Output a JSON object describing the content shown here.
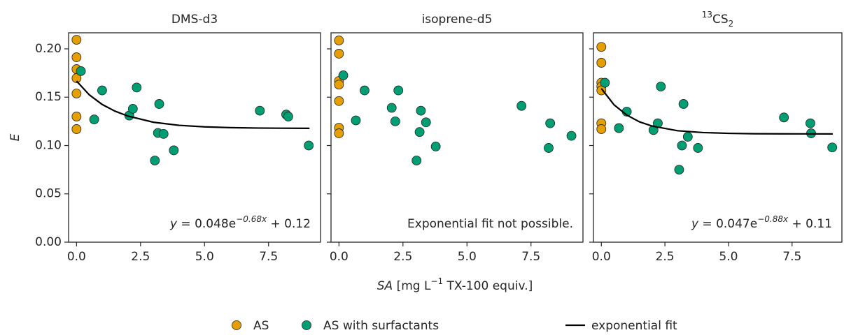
{
  "chart_data": [
    {
      "type": "scatter",
      "title": [
        "DMS-d3"
      ],
      "ylabel": "E",
      "xlim": [
        -0.31,
        9.53
      ],
      "ylim": [
        0,
        0.2166
      ],
      "xticks": [
        {
          "value": 0,
          "label": "0.0"
        },
        2.5,
        {
          "value": 5,
          "label": "5.0"
        },
        7.5
      ],
      "yticks": [
        {
          "value": 0,
          "label": "0.00"
        },
        {
          "value": 0.05,
          "label": "0.05"
        },
        {
          "value": 0.1,
          "label": "0.10"
        },
        {
          "value": 0.15,
          "label": "0.15"
        },
        {
          "value": 0.2,
          "label": "0.20"
        }
      ],
      "yticklabels": true,
      "annotation": [
        "y",
        " = 0.048e",
        "−0.68x",
        " + 0.12"
      ],
      "series": [
        {
          "name": "AS",
          "color": "#e69f00",
          "x": [
            0,
            0,
            0,
            0,
            0,
            0,
            0
          ],
          "values": [
            0.2094,
            0.1913,
            0.179,
            0.1697,
            0.1538,
            0.13,
            0.117
          ]
        },
        {
          "name": "AS with surfactants",
          "color": "#009e73",
          "x": [
            0.17,
            1.0,
            0.69,
            2.06,
            2.2,
            2.35,
            3.23,
            3.06,
            3.18,
            3.4,
            3.8,
            7.16,
            8.19,
            8.27,
            9.07
          ],
          "values": [
            0.177,
            0.157,
            0.127,
            0.131,
            0.138,
            0.16,
            0.143,
            0.0845,
            0.113,
            0.112,
            0.095,
            0.136,
            0.132,
            0.13,
            0.1
          ]
        },
        {
          "name": "exponential fit",
          "color": "#000000",
          "style": "line",
          "x": [
            0,
            0.5,
            1,
            1.5,
            2,
            3,
            4,
            5,
            6,
            7,
            8,
            9.1
          ],
          "values": [
            0.1667,
            0.1524,
            0.1425,
            0.1356,
            0.1305,
            0.1241,
            0.1209,
            0.1193,
            0.1185,
            0.1181,
            0.1179,
            0.1178
          ]
        }
      ]
    },
    {
      "type": "scatter",
      "title": [
        "isoprene-d5"
      ],
      "xlim": [
        -0.31,
        9.53
      ],
      "ylim": [
        0,
        0.2166
      ],
      "xticks": [
        {
          "value": 0,
          "label": "0.0"
        },
        2.5,
        {
          "value": 5,
          "label": "5.0"
        },
        7.5
      ],
      "yticks": [
        0,
        0.05,
        0.1,
        0.15,
        0.2
      ],
      "yticklabels": false,
      "annotation": [
        "Exponential fit not possible."
      ],
      "series": [
        {
          "name": "AS",
          "color": "#e69f00",
          "x": [
            0,
            0,
            0,
            0,
            0,
            0,
            0
          ],
          "values": [
            0.2087,
            0.195,
            0.1668,
            0.163,
            0.146,
            0.1184,
            0.1126
          ]
        },
        {
          "name": "AS with surfactants",
          "color": "#009e73",
          "x": [
            0.17,
            1.0,
            0.66,
            2.06,
            2.2,
            2.32,
            3.2,
            3.03,
            3.15,
            3.4,
            3.78,
            7.13,
            8.25,
            8.19,
            9.08
          ],
          "values": [
            0.1726,
            0.157,
            0.126,
            0.139,
            0.125,
            0.157,
            0.136,
            0.0845,
            0.114,
            0.124,
            0.099,
            0.141,
            0.123,
            0.0975,
            0.11
          ]
        }
      ]
    },
    {
      "type": "scatter",
      "title": [
        "13",
        "CS",
        "2"
      ],
      "xlim": [
        -0.31,
        9.46
      ],
      "ylim": [
        0,
        0.2166
      ],
      "xticks": [
        {
          "value": 0,
          "label": "0.0"
        },
        2.5,
        {
          "value": 5,
          "label": "5.0"
        },
        7.5
      ],
      "yticks": [
        0,
        0.05,
        0.1,
        0.15,
        0.2
      ],
      "yticklabels": false,
      "annotation": [
        "y",
        " = 0.047e",
        "−0.88x",
        " + 0.11"
      ],
      "series": [
        {
          "name": "AS",
          "color": "#e69f00",
          "x": [
            0,
            0,
            0,
            0,
            0,
            0,
            0
          ],
          "values": [
            0.202,
            0.1856,
            0.165,
            0.161,
            0.157,
            0.123,
            0.117
          ]
        },
        {
          "name": "AS with surfactants",
          "color": "#009e73",
          "x": [
            0.14,
            1.0,
            0.69,
            2.05,
            2.22,
            2.34,
            3.23,
            3.06,
            3.17,
            3.4,
            3.8,
            7.18,
            8.22,
            8.25,
            9.08
          ],
          "values": [
            0.165,
            0.135,
            0.118,
            0.116,
            0.123,
            0.161,
            0.143,
            0.075,
            0.1,
            0.109,
            0.0975,
            0.129,
            0.123,
            0.1126,
            0.098
          ]
        },
        {
          "name": "exponential fit",
          "color": "#000000",
          "style": "line",
          "x": [
            0,
            0.5,
            1,
            1.5,
            2,
            3,
            4,
            5,
            6,
            7,
            9.1
          ],
          "values": [
            0.159,
            0.1421,
            0.1315,
            0.1245,
            0.1201,
            0.1153,
            0.1134,
            0.1126,
            0.1122,
            0.1121,
            0.112
          ]
        }
      ]
    }
  ],
  "figure": {
    "xlabel": [
      "SA",
      " [mg L",
      "−1",
      " TX-100 equiv.]"
    ]
  }
}
